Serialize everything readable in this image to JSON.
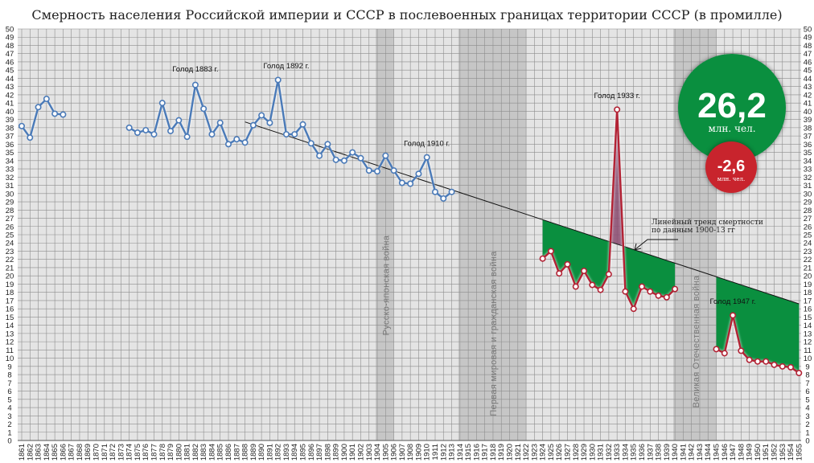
{
  "chart_data": {
    "type": "line",
    "title": "Смерность населения Российской империи и СССР в послевоенных границах территории СССР (в промилле)",
    "xlabel": "",
    "ylabel": "",
    "xlim": [
      1861,
      1955
    ],
    "ylim": [
      0,
      50
    ],
    "grid": true,
    "y_ticks_both_sides": true,
    "series": [
      {
        "color": "#4a7ab8",
        "x": [
          1861,
          1862,
          1863,
          1864,
          1865,
          1866,
          1874,
          1875,
          1876,
          1877,
          1878,
          1879,
          1880,
          1881,
          1882,
          1883,
          1884,
          1885,
          1886,
          1887,
          1888,
          1889,
          1890,
          1891,
          1892,
          1893,
          1894,
          1895,
          1896,
          1897,
          1898,
          1899,
          1900,
          1901,
          1902,
          1903,
          1904,
          1905,
          1906,
          1907,
          1908,
          1909,
          1910,
          1911,
          1912,
          1913
        ],
        "y": [
          38.2,
          36.8,
          40.5,
          41.5,
          39.7,
          39.6,
          38.0,
          37.4,
          37.7,
          37.2,
          41.0,
          37.6,
          38.9,
          36.9,
          43.2,
          40.3,
          37.2,
          38.6,
          36.0,
          36.6,
          36.2,
          38.3,
          39.5,
          38.6,
          43.8,
          37.2,
          37.2,
          38.4,
          36.1,
          34.6,
          36.0,
          34.1,
          34.0,
          35.0,
          34.3,
          32.8,
          32.7,
          34.6,
          32.8,
          31.3,
          31.2,
          32.4,
          34.4,
          30.2,
          29.4,
          30.2
        ],
        "gaps_after": [
          1866
        ]
      },
      {
        "color": "#b22234",
        "x": [
          1924,
          1925,
          1926,
          1927,
          1928,
          1929,
          1930,
          1931,
          1932,
          1933,
          1934,
          1935,
          1936,
          1937,
          1938,
          1939,
          1940,
          1945,
          1946,
          1947,
          1948,
          1949,
          1950,
          1951,
          1952,
          1953,
          1954,
          1955
        ],
        "y": [
          22.1,
          23.0,
          20.3,
          21.4,
          18.7,
          20.6,
          18.9,
          18.3,
          20.2,
          40.2,
          18.1,
          16.0,
          18.7,
          18.1,
          17.6,
          17.4,
          18.4,
          11.1,
          10.6,
          15.2,
          10.9,
          9.8,
          9.6,
          9.6,
          9.2,
          9.0,
          8.9,
          8.2
        ],
        "gaps_after": [
          1940
        ]
      }
    ],
    "trend": {
      "x": [
        1888,
        1955
      ],
      "y": [
        38.7,
        16.6
      ],
      "color": "#111111",
      "note_line1": "Линейный тренд смертности",
      "note_line2": "по данным 1900-13 гг"
    },
    "shaded_fill_color": "#0a8f3f",
    "excess_fill_color": "#8a4a6e",
    "bands": [
      {
        "label": "Русско-японская война",
        "from": 1904,
        "to": 1906
      },
      {
        "label": "Первая мировая и гражданская война",
        "from": 1914,
        "to": 1922
      },
      {
        "label": "Великая Отечественная война",
        "from": 1940,
        "to": 1945
      }
    ],
    "annotations": [
      {
        "text": "Голод 1883 г.",
        "x": 1882,
        "y": 44.8
      },
      {
        "text": "Голод 1892 г.",
        "x": 1893,
        "y": 45.2
      },
      {
        "text": "Голод 1910 г.",
        "x": 1910,
        "y": 35.8
      },
      {
        "text": "Голод 1933 г.",
        "x": 1933,
        "y": 41.6
      },
      {
        "text": "Голод 1947 г.",
        "x": 1947,
        "y": 16.6
      }
    ]
  },
  "callouts": {
    "total": {
      "value": "26,2",
      "unit": "млн. чел.",
      "color": "#0a8f3f"
    },
    "excess": {
      "value": "-2,6",
      "unit": "млн. чел.",
      "color": "#c8242d"
    }
  }
}
